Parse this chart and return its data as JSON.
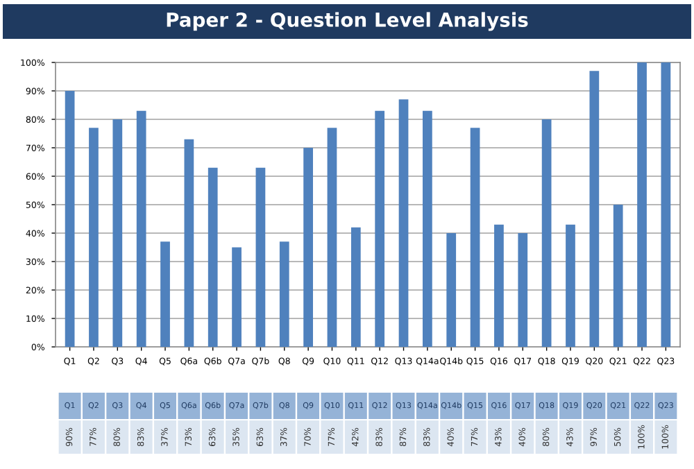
{
  "chart_data": {
    "type": "bar",
    "title": "Paper 2 - Question Level Analysis",
    "categories": [
      "Q1",
      "Q2",
      "Q3",
      "Q4",
      "Q5",
      "Q6a",
      "Q6b",
      "Q7a",
      "Q7b",
      "Q8",
      "Q9",
      "Q10",
      "Q11",
      "Q12",
      "Q13",
      "Q14a",
      "Q14b",
      "Q15",
      "Q16",
      "Q17",
      "Q18",
      "Q19",
      "Q20",
      "Q21",
      "Q22",
      "Q23"
    ],
    "values": [
      90,
      77,
      80,
      83,
      37,
      73,
      63,
      35,
      63,
      37,
      70,
      77,
      42,
      83,
      87,
      83,
      40,
      77,
      43,
      40,
      80,
      43,
      97,
      50,
      100,
      100
    ],
    "value_labels": [
      "90%",
      "77%",
      "80%",
      "83%",
      "37%",
      "73%",
      "63%",
      "35%",
      "63%",
      "37%",
      "70%",
      "77%",
      "42%",
      "83%",
      "87%",
      "83%",
      "40%",
      "77%",
      "43%",
      "40%",
      "80%",
      "43%",
      "97%",
      "50%",
      "100%",
      "100%"
    ],
    "color": "#4f81bd",
    "ylim": [
      0,
      100
    ],
    "yticks": [
      {
        "value": 0,
        "label": "0%"
      },
      {
        "value": 10,
        "label": "10%"
      },
      {
        "value": 20,
        "label": "20%"
      },
      {
        "value": 30,
        "label": "30%"
      },
      {
        "value": 40,
        "label": "40%"
      },
      {
        "value": 50,
        "label": "50%"
      },
      {
        "value": 60,
        "label": "60%"
      },
      {
        "value": 70,
        "label": "70%"
      },
      {
        "value": 80,
        "label": "80%"
      },
      {
        "value": 90,
        "label": "90%"
      },
      {
        "value": 100,
        "label": "100%"
      }
    ],
    "grid": "y"
  }
}
